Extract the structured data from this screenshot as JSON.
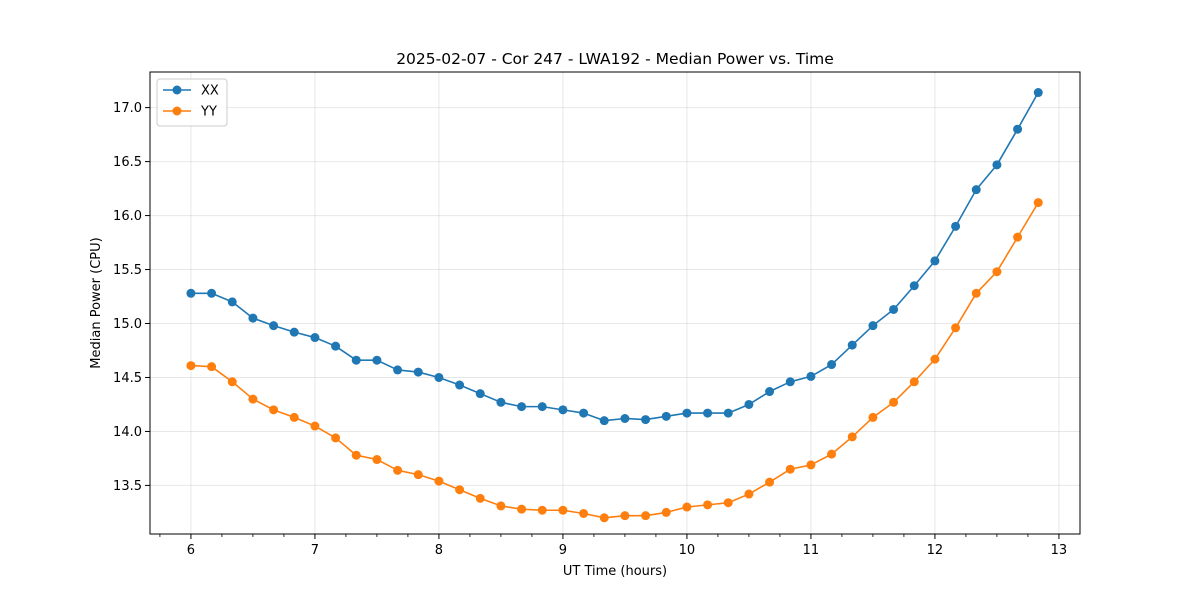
{
  "chart_data": {
    "type": "line",
    "title": "2025-02-07 - Cor 247 - LWA192 - Median Power vs. Time",
    "xlabel": "UT Time (hours)",
    "ylabel": "Median Power (CPU)",
    "xlim": [
      5.67,
      13.17
    ],
    "ylim": [
      13.05,
      17.33
    ],
    "xticks": [
      6,
      7,
      8,
      9,
      10,
      11,
      12,
      13
    ],
    "xtick_labels": [
      "6",
      "7",
      "8",
      "9",
      "10",
      "11",
      "12",
      "13"
    ],
    "xminor_ticks": [
      5.75,
      6.25,
      6.5,
      6.75,
      7.25,
      7.5,
      7.75,
      8.25,
      8.5,
      8.75,
      9.25,
      9.5,
      9.75,
      10.25,
      10.5,
      10.75,
      11.25,
      11.5,
      11.75,
      12.25,
      12.5,
      12.75,
      13.25
    ],
    "yticks": [
      13.5,
      14.0,
      14.5,
      15.0,
      15.5,
      16.0,
      16.5,
      17.0
    ],
    "ytick_labels": [
      "13.5",
      "14.0",
      "14.5",
      "15.0",
      "15.5",
      "16.0",
      "16.5",
      "17.0"
    ],
    "grid": true,
    "legend_position": "top-left",
    "x": [
      6.0,
      6.1667,
      6.3333,
      6.5,
      6.6667,
      6.8333,
      7.0,
      7.1667,
      7.3333,
      7.5,
      7.6667,
      7.8333,
      8.0,
      8.1667,
      8.3333,
      8.5,
      8.6667,
      8.8333,
      9.0,
      9.1667,
      9.3333,
      9.5,
      9.6667,
      9.8333,
      10.0,
      10.1667,
      10.3333,
      10.5,
      10.6667,
      10.8333,
      11.0,
      11.1667,
      11.3333,
      11.5,
      11.6667,
      11.8333,
      12.0,
      12.1667,
      12.3333,
      12.5,
      12.6667,
      12.8333
    ],
    "series": [
      {
        "name": "XX",
        "color": "#1f77b4",
        "values": [
          15.28,
          15.28,
          15.2,
          15.05,
          14.98,
          14.92,
          14.87,
          14.79,
          14.66,
          14.66,
          14.57,
          14.55,
          14.5,
          14.43,
          14.35,
          14.27,
          14.23,
          14.23,
          14.2,
          14.17,
          14.1,
          14.12,
          14.11,
          14.14,
          14.17,
          14.17,
          14.17,
          14.25,
          14.37,
          14.46,
          14.51,
          14.62,
          14.8,
          14.98,
          15.13,
          15.35,
          15.58,
          15.9,
          16.24,
          16.47,
          16.8,
          17.14
        ]
      },
      {
        "name": "YY",
        "color": "#ff7f0e",
        "values": [
          14.61,
          14.6,
          14.46,
          14.3,
          14.2,
          14.13,
          14.05,
          13.94,
          13.78,
          13.74,
          13.64,
          13.6,
          13.54,
          13.46,
          13.38,
          13.31,
          13.28,
          13.27,
          13.27,
          13.24,
          13.2,
          13.22,
          13.22,
          13.25,
          13.3,
          13.32,
          13.34,
          13.42,
          13.53,
          13.65,
          13.69,
          13.79,
          13.95,
          14.13,
          14.27,
          14.46,
          14.67,
          14.96,
          15.28,
          15.48,
          15.8,
          16.12
        ]
      }
    ]
  }
}
